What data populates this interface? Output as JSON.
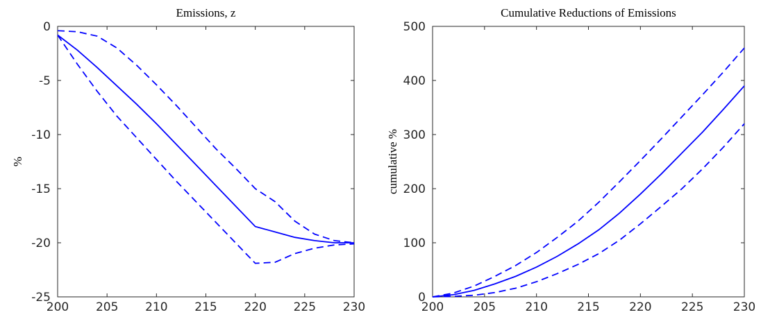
{
  "chart_data": [
    {
      "type": "line",
      "title": "Emissions, z",
      "y_label": "%",
      "x": [
        200,
        202,
        204,
        206,
        208,
        210,
        212,
        214,
        216,
        218,
        220,
        222,
        224,
        226,
        228,
        230
      ],
      "xlim": [
        200,
        230
      ],
      "xticks": [
        200,
        205,
        210,
        215,
        220,
        225,
        230
      ],
      "ylim": [
        -25,
        0
      ],
      "yticks": [
        -25,
        -20,
        -15,
        -10,
        -5,
        0
      ],
      "series": [
        {
          "color": "#0000ff",
          "dash": "solid",
          "values": [
            -0.8,
            -2.2,
            -3.8,
            -5.5,
            -7.2,
            -9.0,
            -10.9,
            -12.8,
            -14.7,
            -16.6,
            -18.5,
            -19.0,
            -19.5,
            -19.8,
            -20.0,
            -20.0
          ]
        },
        {
          "color": "#0000ff",
          "dash": "dashed",
          "values": [
            -0.4,
            -0.5,
            -0.9,
            -2.0,
            -3.6,
            -5.4,
            -7.3,
            -9.3,
            -11.3,
            -13.1,
            -15.0,
            -16.2,
            -18.0,
            -19.2,
            -19.8,
            -20.0
          ]
        },
        {
          "color": "#0000ff",
          "dash": "dashed",
          "values": [
            -0.8,
            -3.5,
            -6.0,
            -8.3,
            -10.3,
            -12.3,
            -14.3,
            -16.2,
            -18.1,
            -20.0,
            -21.9,
            -21.8,
            -21.0,
            -20.5,
            -20.2,
            -20.1
          ]
        }
      ]
    },
    {
      "type": "line",
      "title": "Cumulative Reductions of Emissions",
      "y_label": "cumulative %",
      "x": [
        200,
        202,
        204,
        206,
        208,
        210,
        212,
        214,
        216,
        218,
        220,
        222,
        224,
        226,
        228,
        230
      ],
      "xlim": [
        200,
        230
      ],
      "xticks": [
        200,
        205,
        210,
        215,
        220,
        225,
        230
      ],
      "ylim": [
        0,
        500
      ],
      "yticks": [
        0,
        100,
        200,
        300,
        400,
        500
      ],
      "series": [
        {
          "color": "#0000ff",
          "dash": "solid",
          "values": [
            0,
            4,
            12,
            24,
            38,
            55,
            75,
            98,
            124,
            155,
            190,
            227,
            266,
            305,
            347,
            390
          ]
        },
        {
          "color": "#0000ff",
          "dash": "dashed",
          "values": [
            0,
            7,
            20,
            38,
            58,
            82,
            110,
            140,
            175,
            213,
            252,
            292,
            333,
            374,
            416,
            460
          ]
        },
        {
          "color": "#0000ff",
          "dash": "dashed",
          "values": [
            0,
            1,
            3,
            8,
            16,
            28,
            43,
            60,
            80,
            105,
            135,
            167,
            200,
            237,
            277,
            320
          ]
        }
      ]
    }
  ]
}
